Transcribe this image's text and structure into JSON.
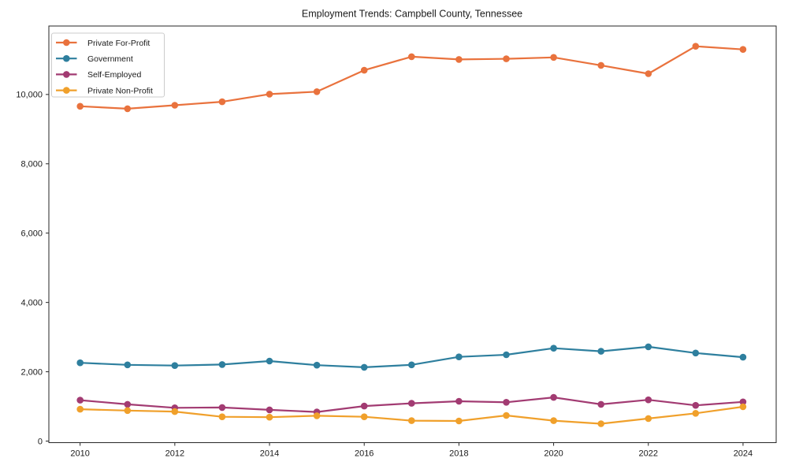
{
  "chart_data": {
    "type": "line",
    "title": "Employment Trends: Campbell County, Tennessee",
    "xlabel": "",
    "ylabel": "",
    "x": [
      2010,
      2011,
      2012,
      2013,
      2014,
      2015,
      2016,
      2017,
      2018,
      2019,
      2020,
      2021,
      2022,
      2023,
      2024
    ],
    "series": [
      {
        "name": "Private For-Profit",
        "color": "#e9723d",
        "values": [
          9660,
          9590,
          9690,
          9790,
          10010,
          10080,
          10700,
          11090,
          11010,
          11030,
          11070,
          10840,
          10600,
          11390,
          11300
        ]
      },
      {
        "name": "Government",
        "color": "#2e7f9e",
        "values": [
          2260,
          2200,
          2180,
          2210,
          2310,
          2190,
          2130,
          2200,
          2430,
          2490,
          2680,
          2590,
          2720,
          2540,
          2420
        ]
      },
      {
        "name": "Self-Employed",
        "color": "#a23b72",
        "values": [
          1180,
          1060,
          960,
          970,
          900,
          840,
          1010,
          1090,
          1150,
          1120,
          1260,
          1060,
          1190,
          1030,
          1130
        ]
      },
      {
        "name": "Private Non-Profit",
        "color": "#f0a02b",
        "values": [
          920,
          880,
          850,
          700,
          690,
          730,
          700,
          590,
          580,
          740,
          590,
          500,
          650,
          800,
          990
        ]
      }
    ],
    "x_ticks": [
      2010,
      2012,
      2014,
      2016,
      2018,
      2020,
      2022,
      2024
    ],
    "y_ticks": [
      0,
      2000,
      4000,
      6000,
      8000,
      10000
    ],
    "y_tick_labels": [
      "0",
      "2,000",
      "4,000",
      "6,000",
      "8,000",
      "10,000"
    ],
    "xlim": [
      2009.34,
      2024.7
    ],
    "ylim": [
      -45,
      11975
    ],
    "grid": false,
    "legend_position": "upper-left",
    "colors": {
      "spine": "#262626",
      "tick": "#262626",
      "legend_border": "#cccccc",
      "legend_bg": "#ffffff",
      "background": "#ffffff"
    }
  }
}
